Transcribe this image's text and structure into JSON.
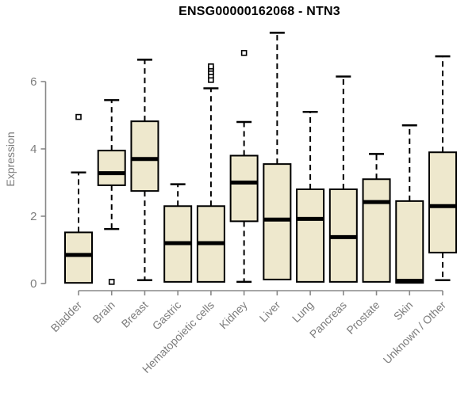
{
  "chart_data": {
    "type": "boxplot",
    "title": "ENSG00000162068 - NTN3",
    "ylabel": "Expression",
    "xlabel": "",
    "yticks": [
      0,
      2,
      4,
      6
    ],
    "ylim": [
      0,
      7.6
    ],
    "grid": false,
    "legend": null,
    "categories": [
      "Bladder",
      "Brain",
      "Breast",
      "Gastric",
      "Hematopoietic cells",
      "Kidney",
      "Liver",
      "Lung",
      "Pancreas",
      "Prostate",
      "Skin",
      "Unknown / Other"
    ],
    "boxes": [
      {
        "category": "Bladder",
        "whisker_low": 0.02,
        "q1": 0.02,
        "median": 0.85,
        "q3": 1.52,
        "whisker_high": 3.3,
        "outliers": [
          4.95
        ]
      },
      {
        "category": "Brain",
        "whisker_low": 1.62,
        "q1": 2.92,
        "median": 3.28,
        "q3": 3.95,
        "whisker_high": 5.45,
        "outliers": [
          0.05
        ]
      },
      {
        "category": "Breast",
        "whisker_low": 0.1,
        "q1": 2.75,
        "median": 3.7,
        "q3": 4.82,
        "whisker_high": 6.65,
        "outliers": []
      },
      {
        "category": "Gastric",
        "whisker_low": 0.05,
        "q1": 0.05,
        "median": 1.2,
        "q3": 2.3,
        "whisker_high": 2.95,
        "outliers": []
      },
      {
        "category": "Hematopoietic cells",
        "whisker_low": 0.05,
        "q1": 0.05,
        "median": 1.2,
        "q3": 2.3,
        "whisker_high": 5.8,
        "outliers": [
          6.05,
          6.18,
          6.28,
          6.38,
          6.45
        ]
      },
      {
        "category": "Kidney",
        "whisker_low": 0.05,
        "q1": 1.85,
        "median": 3.0,
        "q3": 3.8,
        "whisker_high": 4.8,
        "outliers": [
          6.85
        ]
      },
      {
        "category": "Liver",
        "whisker_low": 0.12,
        "q1": 0.12,
        "median": 1.9,
        "q3": 3.55,
        "whisker_high": 7.45,
        "outliers": []
      },
      {
        "category": "Lung",
        "whisker_low": 0.05,
        "q1": 0.05,
        "median": 1.92,
        "q3": 2.8,
        "whisker_high": 5.1,
        "outliers": []
      },
      {
        "category": "Pancreas",
        "whisker_low": 0.05,
        "q1": 0.05,
        "median": 1.38,
        "q3": 2.8,
        "whisker_high": 6.15,
        "outliers": []
      },
      {
        "category": "Prostate",
        "whisker_low": 0.05,
        "q1": 0.05,
        "median": 2.42,
        "q3": 3.1,
        "whisker_high": 3.85,
        "outliers": []
      },
      {
        "category": "Skin",
        "whisker_low": 0.02,
        "q1": 0.02,
        "median": 0.08,
        "q3": 2.45,
        "whisker_high": 4.7,
        "outliers": []
      },
      {
        "category": "Unknown / Other",
        "whisker_low": 0.1,
        "q1": 0.92,
        "median": 2.3,
        "q3": 3.9,
        "whisker_high": 6.75,
        "outliers": []
      }
    ],
    "colors": {
      "box_fill": "#EEE8CD",
      "box_border": "#000000",
      "median": "#000000",
      "whisker": "#000000",
      "outlier_stroke": "#000000",
      "outlier_fill": "#ffffff",
      "axis_line": "#888888",
      "axis_text": "#7d7d7d",
      "title_text": "#000000"
    }
  }
}
